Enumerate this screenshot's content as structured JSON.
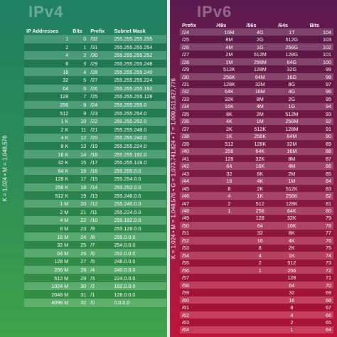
{
  "ipv4": {
    "title": "IPv4",
    "side_label": "K = 1,024 • M = 1,048,576",
    "headers": [
      "IP Addresses",
      "Bits",
      "Prefix",
      "Subnet Mask"
    ],
    "rows": [
      [
        "1",
        "0",
        "/32",
        "255.255.255.255"
      ],
      [
        "2",
        "1",
        "/31",
        "255.255.255.254"
      ],
      [
        "4",
        "2",
        "/30",
        "255.255.255.252"
      ],
      [
        "8",
        "3",
        "/29",
        "255.255.255.248"
      ],
      [
        "16",
        "4",
        "/28",
        "255.255.255.240"
      ],
      [
        "32",
        "5",
        "/27",
        "255.255.255.224"
      ],
      [
        "64",
        "6",
        "/26",
        "255.255.255.192"
      ],
      [
        "128",
        "7",
        "/25",
        "255.255.255.128"
      ],
      [
        "256",
        "8",
        "/24",
        "255.255.255.0"
      ],
      [
        "512",
        "9",
        "/23",
        "255.255.254.0"
      ],
      [
        "1 K",
        "10",
        "/22",
        "255.255.252.0"
      ],
      [
        "2 K",
        "11",
        "/21",
        "255.255.248.0"
      ],
      [
        "4 K",
        "12",
        "/20",
        "255.255.240.0"
      ],
      [
        "8 K",
        "13",
        "/19",
        "255.255.224.0"
      ],
      [
        "16 K",
        "14",
        "/18",
        "255.255.192.0"
      ],
      [
        "32 K",
        "15",
        "/17",
        "255.255.128.0"
      ],
      [
        "64 K",
        "16",
        "/16",
        "255.255.0.0"
      ],
      [
        "128 K",
        "17",
        "/15",
        "255.254.0.0"
      ],
      [
        "256 K",
        "18",
        "/14",
        "255.252.0.0"
      ],
      [
        "512 K",
        "19",
        "/13",
        "255.248.0.0"
      ],
      [
        "1 M",
        "20",
        "/12",
        "255.240.0.0"
      ],
      [
        "2 M",
        "21",
        "/11",
        "255.224.0.0"
      ],
      [
        "4 M",
        "22",
        "/10",
        "255.192.0.0"
      ],
      [
        "8 M",
        "23",
        "/9",
        "255.128.0.0"
      ],
      [
        "16 M",
        "24",
        "/8",
        "255.0.0.0"
      ],
      [
        "32 M",
        "25",
        "/7",
        "254.0.0.0"
      ],
      [
        "64 M",
        "26",
        "/6",
        "252.0.0.0"
      ],
      [
        "128 M",
        "27",
        "/5",
        "248.0.0.0"
      ],
      [
        "256 M",
        "28",
        "/4",
        "240.0.0.0"
      ],
      [
        "512 M",
        "29",
        "/3",
        "224.0.0.0"
      ],
      [
        "1024 M",
        "30",
        "/2",
        "192.0.0.0"
      ],
      [
        "2048 M",
        "31",
        "/1",
        "128.0.0.0"
      ],
      [
        "4096 M",
        "32",
        "/0",
        "0.0.0.0"
      ]
    ]
  },
  "ipv6": {
    "title": "IPv6",
    "side_label": "K = 1,024 • M = 1,048,576 • G = 1,073,741,824 • T = 1,099,511,627,776",
    "headers": [
      "Prefix",
      "/48s",
      "/56s",
      "/64s",
      "Bits"
    ],
    "rows": [
      [
        "/24",
        "16M",
        "4G",
        "1T",
        "104"
      ],
      [
        "/25",
        "8M",
        "2G",
        "512G",
        "103"
      ],
      [
        "/26",
        "4M",
        "1G",
        "256G",
        "102"
      ],
      [
        "/27",
        "2M",
        "512M",
        "128G",
        "101"
      ],
      [
        "/28",
        "1M",
        "256M",
        "64G",
        "100"
      ],
      [
        "/29",
        "512K",
        "128M",
        "32G",
        "99"
      ],
      [
        "/30",
        "256K",
        "64M",
        "16G",
        "98"
      ],
      [
        "/31",
        "128K",
        "32M",
        "8G",
        "97"
      ],
      [
        "/32",
        "64K",
        "16M",
        "4G",
        "96"
      ],
      [
        "/33",
        "32K",
        "8M",
        "2G",
        "95"
      ],
      [
        "/34",
        "16K",
        "4M",
        "1G",
        "94"
      ],
      [
        "/35",
        "8K",
        "2M",
        "512M",
        "93"
      ],
      [
        "/36",
        "4K",
        "1M",
        "256M",
        "92"
      ],
      [
        "/37",
        "2K",
        "512K",
        "128M",
        "91"
      ],
      [
        "/38",
        "1K",
        "256K",
        "64M",
        "90"
      ],
      [
        "/39",
        "512",
        "128K",
        "32M",
        "89"
      ],
      [
        "/40",
        "256",
        "64K",
        "16M",
        "88"
      ],
      [
        "/41",
        "128",
        "32K",
        "8M",
        "87"
      ],
      [
        "/42",
        "64",
        "16K",
        "4M",
        "86"
      ],
      [
        "/43",
        "32",
        "8K",
        "2M",
        "85"
      ],
      [
        "/44",
        "16",
        "4K",
        "1M",
        "84"
      ],
      [
        "/45",
        "8",
        "2K",
        "512K",
        "83"
      ],
      [
        "/46",
        "4",
        "1K",
        "256K",
        "82"
      ],
      [
        "/47",
        "2",
        "512",
        "128K",
        "81"
      ],
      [
        "/48",
        "1",
        "256",
        "64K",
        "80"
      ],
      [
        "/49",
        "",
        "128",
        "32K",
        "79"
      ],
      [
        "/50",
        "",
        "64",
        "16K",
        "78"
      ],
      [
        "/51",
        "",
        "32",
        "8K",
        "77"
      ],
      [
        "/52",
        "",
        "16",
        "4K",
        "76"
      ],
      [
        "/53",
        "",
        "8",
        "2K",
        "75"
      ],
      [
        "/54",
        "",
        "4",
        "1K",
        "74"
      ],
      [
        "/55",
        "",
        "2",
        "512",
        "73"
      ],
      [
        "/56",
        "",
        "1",
        "256",
        "72"
      ],
      [
        "/57",
        "",
        "",
        "128",
        "71"
      ],
      [
        "/58",
        "",
        "",
        "64",
        "70"
      ],
      [
        "/59",
        "",
        "",
        "32",
        "69"
      ],
      [
        "/60",
        "",
        "",
        "16",
        "68"
      ],
      [
        "/61",
        "",
        "",
        "8",
        "67"
      ],
      [
        "/62",
        "",
        "",
        "4",
        "66"
      ],
      [
        "/63",
        "",
        "",
        "2",
        "65"
      ],
      [
        "/64",
        "",
        "",
        "1",
        "64"
      ]
    ]
  }
}
